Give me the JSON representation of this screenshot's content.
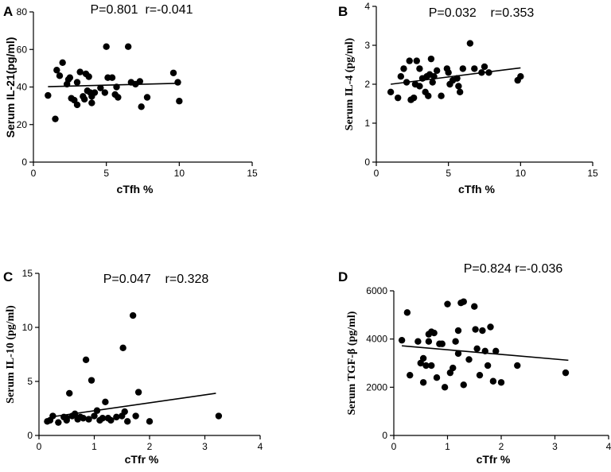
{
  "chart_data": [
    {
      "panel": "A",
      "type": "scatter",
      "stats": "P=0.801  r=-0.041",
      "xlabel": "cTfh %",
      "ylabel": "Serum IL-21(pg/ml)",
      "xlim": [
        0,
        15
      ],
      "ylim": [
        0,
        80
      ],
      "xticks": [
        0,
        5,
        10,
        15
      ],
      "yticks": [
        0,
        20,
        40,
        60,
        80
      ],
      "trend": [
        [
          1,
          40.2
        ],
        [
          10,
          42.0
        ]
      ],
      "points": [
        [
          1.0,
          35.5
        ],
        [
          1.5,
          23
        ],
        [
          1.6,
          49
        ],
        [
          1.8,
          46
        ],
        [
          2.0,
          53
        ],
        [
          2.3,
          41.5
        ],
        [
          2.4,
          44
        ],
        [
          2.5,
          45
        ],
        [
          2.6,
          34
        ],
        [
          2.8,
          33
        ],
        [
          3.0,
          42.5
        ],
        [
          3.0,
          30.5
        ],
        [
          3.2,
          48
        ],
        [
          3.4,
          35
        ],
        [
          3.5,
          33.5
        ],
        [
          3.6,
          47
        ],
        [
          3.7,
          38
        ],
        [
          3.8,
          45.5
        ],
        [
          3.9,
          37
        ],
        [
          4.0,
          35
        ],
        [
          4.0,
          31.5
        ],
        [
          4.2,
          37
        ],
        [
          4.6,
          39.5
        ],
        [
          4.9,
          37
        ],
        [
          5.0,
          61.5
        ],
        [
          5.1,
          45
        ],
        [
          5.4,
          45
        ],
        [
          5.6,
          36
        ],
        [
          5.7,
          40
        ],
        [
          5.8,
          34.5
        ],
        [
          6.5,
          61.5
        ],
        [
          6.7,
          42.5
        ],
        [
          7.0,
          41.5
        ],
        [
          7.3,
          43
        ],
        [
          7.4,
          29.5
        ],
        [
          7.8,
          34.5
        ],
        [
          9.6,
          47.5
        ],
        [
          9.9,
          42.5
        ],
        [
          10.0,
          32.5
        ]
      ]
    },
    {
      "panel": "B",
      "type": "scatter",
      "stats": "P=0.032    r=0.353",
      "xlabel": "cTfh %",
      "ylabel": "Serum IL-4 (pg/ml)",
      "xlim": [
        0,
        15
      ],
      "ylim": [
        0,
        4
      ],
      "xticks": [
        0,
        5,
        10,
        15
      ],
      "yticks": [
        0,
        1,
        2,
        3,
        4
      ],
      "trend": [
        [
          1,
          2.0
        ],
        [
          10,
          2.42
        ]
      ],
      "points": [
        [
          1.0,
          1.8
        ],
        [
          1.5,
          1.65
        ],
        [
          1.7,
          2.2
        ],
        [
          1.9,
          2.4
        ],
        [
          2.1,
          2.05
        ],
        [
          2.3,
          2.6
        ],
        [
          2.4,
          1.6
        ],
        [
          2.6,
          1.65
        ],
        [
          2.7,
          2.0
        ],
        [
          2.8,
          2.6
        ],
        [
          3.0,
          2.4
        ],
        [
          3.0,
          1.95
        ],
        [
          3.2,
          2.15
        ],
        [
          3.4,
          1.8
        ],
        [
          3.5,
          2.2
        ],
        [
          3.6,
          1.7
        ],
        [
          3.7,
          2.25
        ],
        [
          3.8,
          2.65
        ],
        [
          3.9,
          2.05
        ],
        [
          4.0,
          2.2
        ],
        [
          4.2,
          2.35
        ],
        [
          4.5,
          1.7
        ],
        [
          4.9,
          2.4
        ],
        [
          5.0,
          2.3
        ],
        [
          5.1,
          2.0
        ],
        [
          5.3,
          2.1
        ],
        [
          5.6,
          2.15
        ],
        [
          5.7,
          1.95
        ],
        [
          5.8,
          1.8
        ],
        [
          6.0,
          2.4
        ],
        [
          6.5,
          3.05
        ],
        [
          6.8,
          2.4
        ],
        [
          7.3,
          2.3
        ],
        [
          7.5,
          2.45
        ],
        [
          7.8,
          2.3
        ],
        [
          9.8,
          2.1
        ],
        [
          10.0,
          2.2
        ]
      ]
    },
    {
      "panel": "C",
      "type": "scatter",
      "stats": "P=0.047    r=0.328",
      "xlabel": "cTfr %",
      "ylabel": "Serum IL-10 (pg/ml)",
      "xlim": [
        0,
        4
      ],
      "ylim": [
        0,
        15
      ],
      "xticks": [
        0,
        1,
        2,
        3,
        4
      ],
      "yticks": [
        0,
        5,
        10,
        15
      ],
      "trend": [
        [
          0.2,
          1.7
        ],
        [
          3.2,
          3.9
        ]
      ],
      "points": [
        [
          0.15,
          1.3
        ],
        [
          0.2,
          1.4
        ],
        [
          0.25,
          1.8
        ],
        [
          0.35,
          1.2
        ],
        [
          0.45,
          1.7
        ],
        [
          0.5,
          1.4
        ],
        [
          0.5,
          1.6
        ],
        [
          0.55,
          3.9
        ],
        [
          0.6,
          1.8
        ],
        [
          0.65,
          2.0
        ],
        [
          0.7,
          1.5
        ],
        [
          0.75,
          1.7
        ],
        [
          0.8,
          1.6
        ],
        [
          0.85,
          7.0
        ],
        [
          0.9,
          1.5
        ],
        [
          0.95,
          5.1
        ],
        [
          1.0,
          1.8
        ],
        [
          1.05,
          2.3
        ],
        [
          1.1,
          1.4
        ],
        [
          1.15,
          1.6
        ],
        [
          1.2,
          3.1
        ],
        [
          1.25,
          1.6
        ],
        [
          1.3,
          1.4
        ],
        [
          1.4,
          1.7
        ],
        [
          1.5,
          1.8
        ],
        [
          1.52,
          8.1
        ],
        [
          1.55,
          2.2
        ],
        [
          1.6,
          1.3
        ],
        [
          1.7,
          11.1
        ],
        [
          1.75,
          1.8
        ],
        [
          1.8,
          4.0
        ],
        [
          2.0,
          1.3
        ],
        [
          3.25,
          1.8
        ]
      ]
    },
    {
      "panel": "D",
      "type": "scatter",
      "stats": "P=0.824 r=-0.036",
      "xlabel": "cTfr %",
      "ylabel": "Serum TGF-β (pg/ml)",
      "xlim": [
        0,
        4
      ],
      "ylim": [
        0,
        6000
      ],
      "xticks": [
        0,
        1,
        2,
        3,
        4
      ],
      "yticks": [
        0,
        2000,
        4000,
        6000
      ],
      "trend": [
        [
          0.15,
          3720
        ],
        [
          3.25,
          3120
        ]
      ],
      "points": [
        [
          0.15,
          3950
        ],
        [
          0.25,
          5100
        ],
        [
          0.3,
          2500
        ],
        [
          0.45,
          3900
        ],
        [
          0.5,
          3000
        ],
        [
          0.55,
          2200
        ],
        [
          0.55,
          3200
        ],
        [
          0.6,
          2900
        ],
        [
          0.65,
          3900
        ],
        [
          0.65,
          4200
        ],
        [
          0.7,
          4300
        ],
        [
          0.7,
          2900
        ],
        [
          0.75,
          4250
        ],
        [
          0.8,
          2400
        ],
        [
          0.85,
          3800
        ],
        [
          0.9,
          3800
        ],
        [
          0.95,
          2000
        ],
        [
          1.0,
          5450
        ],
        [
          1.05,
          2600
        ],
        [
          1.1,
          2800
        ],
        [
          1.15,
          3900
        ],
        [
          1.2,
          3400
        ],
        [
          1.2,
          4350
        ],
        [
          1.25,
          5500
        ],
        [
          1.3,
          5550
        ],
        [
          1.3,
          2100
        ],
        [
          1.4,
          3150
        ],
        [
          1.5,
          5350
        ],
        [
          1.52,
          4400
        ],
        [
          1.55,
          3600
        ],
        [
          1.6,
          2500
        ],
        [
          1.65,
          4350
        ],
        [
          1.7,
          3500
        ],
        [
          1.75,
          2900
        ],
        [
          1.8,
          4500
        ],
        [
          1.85,
          2250
        ],
        [
          1.9,
          3500
        ],
        [
          2.0,
          2200
        ],
        [
          2.3,
          2900
        ],
        [
          3.2,
          2600
        ]
      ]
    }
  ]
}
